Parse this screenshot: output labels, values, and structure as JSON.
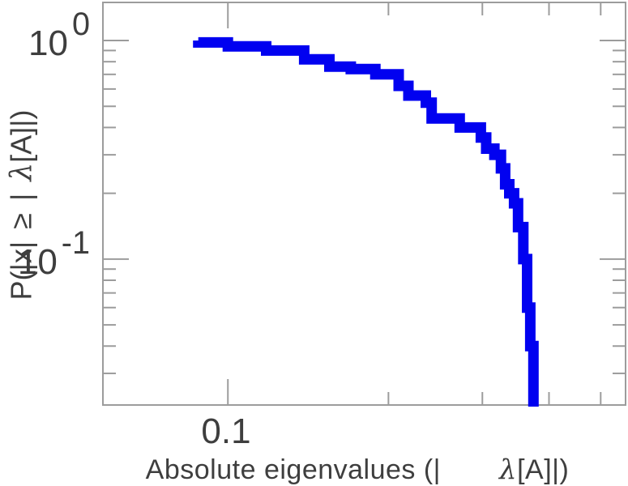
{
  "figure": {
    "background": "#ffffff",
    "y_tick_labels": [
      {
        "base": "10",
        "exp": "0"
      },
      {
        "base": "10",
        "exp": "-1"
      }
    ],
    "x_tick_labels": [
      "0.1"
    ],
    "xlabel": {
      "before": "Absolute eigenvalues (|",
      "lambda": "λ",
      "after": "[A]|)"
    },
    "ylabel": {
      "before": "P(|x| ≥ | ",
      "lambda": "λ",
      "after": "[A]|)"
    }
  },
  "colors": {
    "axis": "#9c9c9c",
    "text": "#3e3e3e",
    "curve": "#0101f0"
  },
  "chart_data": {
    "type": "line",
    "subtype": "empirical-ccdf-step",
    "title": "",
    "xlabel": "Absolute eigenvalues (| λ[A]|)",
    "ylabel": "P(|x| ≥ | λ[A]|)",
    "xscale": "log",
    "yscale": "log",
    "grid": false,
    "legend": "none",
    "xlim": [
      0.0583,
      0.5567
    ],
    "ylim": [
      0.0215,
      1.4936
    ],
    "x_major_ticks": [
      0.1
    ],
    "x_minor_ticks": [
      0.2,
      0.3,
      0.4,
      0.5
    ],
    "y_major_ticks": [
      1,
      0.1
    ],
    "y_minor_ticks": [
      0.9,
      0.8,
      0.7,
      0.6,
      0.5,
      0.4,
      0.3,
      0.2,
      0.09,
      0.08,
      0.07,
      0.06,
      0.05,
      0.04,
      0.03
    ],
    "line_color": "#0101f0",
    "line_width": 13,
    "p_initial": 1.0,
    "points": [
      {
        "lambda": 0.088,
        "p": 0.98
      },
      {
        "lambda": 0.1,
        "p": 0.94
      },
      {
        "lambda": 0.118,
        "p": 0.9
      },
      {
        "lambda": 0.139,
        "p": 0.82
      },
      {
        "lambda": 0.155,
        "p": 0.76
      },
      {
        "lambda": 0.17,
        "p": 0.74
      },
      {
        "lambda": 0.189,
        "p": 0.7
      },
      {
        "lambda": 0.209,
        "p": 0.62
      },
      {
        "lambda": 0.218,
        "p": 0.56
      },
      {
        "lambda": 0.235,
        "p": 0.52
      },
      {
        "lambda": 0.241,
        "p": 0.44
      },
      {
        "lambda": 0.272,
        "p": 0.4
      },
      {
        "lambda": 0.298,
        "p": 0.36
      },
      {
        "lambda": 0.305,
        "p": 0.32
      },
      {
        "lambda": 0.316,
        "p": 0.3
      },
      {
        "lambda": 0.325,
        "p": 0.26
      },
      {
        "lambda": 0.331,
        "p": 0.22
      },
      {
        "lambda": 0.337,
        "p": 0.2
      },
      {
        "lambda": 0.344,
        "p": 0.18
      },
      {
        "lambda": 0.35,
        "p": 0.14
      },
      {
        "lambda": 0.358,
        "p": 0.1
      },
      {
        "lambda": 0.364,
        "p": 0.06
      },
      {
        "lambda": 0.369,
        "p": 0.04
      },
      {
        "lambda": 0.374,
        "p": 0.02
      }
    ],
    "max_lambda": 0.376
  }
}
